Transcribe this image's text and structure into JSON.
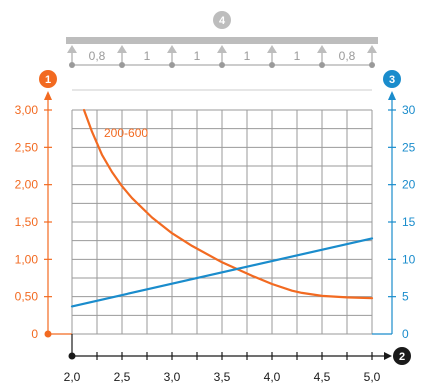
{
  "chart_data": {
    "type": "line",
    "title": "",
    "colors": {
      "left_axis": "#f26a21",
      "right_axis": "#1a8ccc",
      "x_axis": "#1a1a1a",
      "grid": "#9a9a9a",
      "beam": "#bdbdbd",
      "support_labels": "#9a9a9a"
    },
    "badges": {
      "left": "1",
      "bottom": "2",
      "right": "3",
      "top": "4"
    },
    "beam": {
      "span_labels": [
        "0,8",
        "1",
        "1",
        "1",
        "1",
        "0,8"
      ]
    },
    "x_axis": {
      "range": [
        2.0,
        5.0
      ],
      "ticks": [
        "2,0",
        "2,5",
        "3,0",
        "3,5",
        "4,0",
        "4,5",
        "5,0"
      ],
      "tick_values": [
        2.0,
        2.5,
        3.0,
        3.5,
        4.0,
        4.5,
        5.0
      ]
    },
    "y_left_axis": {
      "range": [
        0,
        3.0
      ],
      "ticks": [
        "0",
        "0,50",
        "1,00",
        "1,50",
        "2,00",
        "2,50",
        "3,00"
      ],
      "tick_values": [
        0,
        0.5,
        1.0,
        1.5,
        2.0,
        2.5,
        3.0
      ]
    },
    "y_right_axis": {
      "range": [
        0,
        30
      ],
      "ticks": [
        "0",
        "5",
        "10",
        "15",
        "20",
        "25",
        "30"
      ],
      "tick_values": [
        0,
        5,
        10,
        15,
        20,
        25,
        30
      ]
    },
    "series": [
      {
        "name": "200-600",
        "axis": "left",
        "color": "#f26a21",
        "x": [
          2.12,
          2.2,
          2.3,
          2.4,
          2.5,
          2.6,
          2.8,
          3.0,
          3.2,
          3.5,
          3.8,
          4.0,
          4.2,
          4.3,
          4.5,
          4.75,
          5.0
        ],
        "y": [
          3.0,
          2.71,
          2.4,
          2.17,
          1.98,
          1.82,
          1.56,
          1.35,
          1.18,
          0.96,
          0.78,
          0.67,
          0.58,
          0.55,
          0.51,
          0.49,
          0.48
        ]
      },
      {
        "axis": "right",
        "color": "#1a8ccc",
        "x": [
          2.0,
          5.0
        ],
        "y": [
          3.7,
          12.8
        ]
      }
    ],
    "grid": true
  }
}
